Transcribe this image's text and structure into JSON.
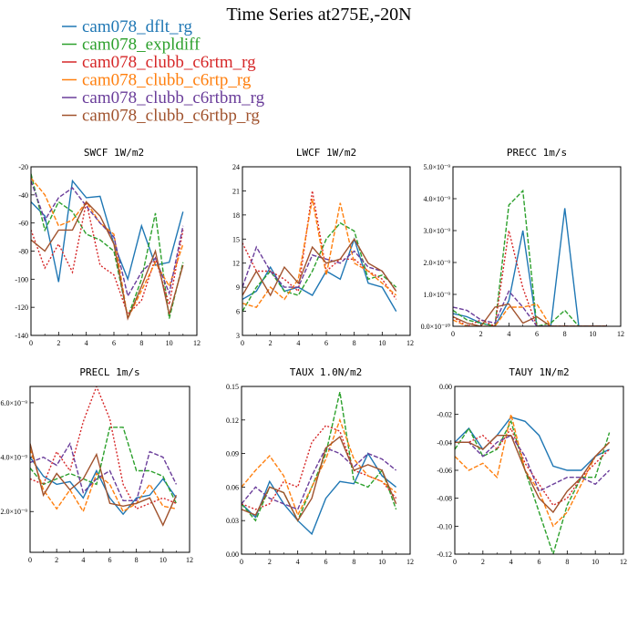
{
  "figure": {
    "title": "Time Series at275E,-20N"
  },
  "legend": [
    {
      "name": "cam078_dflt_rg",
      "color": "#1f77b4",
      "dash": "solid"
    },
    {
      "name": "cam078_expldiff",
      "color": "#2ca02c",
      "dash": "dashed"
    },
    {
      "name": "cam078_clubb_c6rtm_rg",
      "color": "#d62728",
      "dash": "dotted"
    },
    {
      "name": "cam078_clubb_c6rtp_rg",
      "color": "#ff7f0e",
      "dash": "dashed"
    },
    {
      "name": "cam078_clubb_c6rtbm_rg",
      "color": "#6a3d9a",
      "dash": "dashed"
    },
    {
      "name": "cam078_clubb_c6rtbp_rg",
      "color": "#a0522d",
      "dash": "solid"
    }
  ],
  "chart_data": [
    {
      "type": "line",
      "title": "SWCF   1W/m2",
      "x": [
        0,
        1,
        2,
        3,
        4,
        5,
        6,
        7,
        8,
        9,
        10,
        11
      ],
      "xlim": [
        0,
        12
      ],
      "xticks": [
        "0",
        "2",
        "4",
        "6",
        "8",
        "10",
        "12"
      ],
      "ylim": [
        -140,
        -20
      ],
      "yticks": [
        "-140",
        "-120",
        "-100",
        "-80",
        "-60",
        "-40",
        "-20"
      ],
      "series": [
        {
          "name": "cam078_dflt_rg",
          "values": [
            -45,
            -55,
            -102,
            -30,
            -42,
            -41,
            -75,
            -100,
            -62,
            -90,
            -88,
            -52
          ]
        },
        {
          "name": "cam078_expldiff",
          "values": [
            -25,
            -65,
            -45,
            -52,
            -68,
            -72,
            -80,
            -127,
            -100,
            -53,
            -128,
            -88
          ]
        },
        {
          "name": "cam078_clubb_c6rtm_rg",
          "values": [
            -65,
            -92,
            -75,
            -95,
            -45,
            -90,
            -97,
            -125,
            -115,
            -85,
            -118,
            -65
          ]
        },
        {
          "name": "cam078_clubb_c6rtp_rg",
          "values": [
            -28,
            -40,
            -62,
            -58,
            -45,
            -60,
            -68,
            -128,
            -108,
            -88,
            -105,
            -75
          ]
        },
        {
          "name": "cam078_clubb_c6rtbm_rg",
          "values": [
            -30,
            -58,
            -42,
            -35,
            -48,
            -60,
            -70,
            -112,
            -95,
            -85,
            -110,
            -62
          ]
        },
        {
          "name": "cam078_clubb_c6rtbp_rg",
          "values": [
            -72,
            -80,
            -65,
            -65,
            -45,
            -55,
            -75,
            -128,
            -105,
            -80,
            -125,
            -90
          ]
        }
      ]
    },
    {
      "type": "line",
      "title": "LWCF   1W/m2",
      "x": [
        0,
        1,
        2,
        3,
        4,
        5,
        6,
        7,
        8,
        9,
        10,
        11
      ],
      "xlim": [
        0,
        12
      ],
      "xticks": [
        "0",
        "2",
        "4",
        "6",
        "8",
        "10",
        "12"
      ],
      "ylim": [
        3,
        24
      ],
      "yticks": [
        "3",
        "6",
        "9",
        "12",
        "15",
        "18",
        "21",
        "24"
      ],
      "series": [
        {
          "name": "cam078_dflt_rg",
          "values": [
            7.5,
            8.5,
            11.5,
            8.5,
            9,
            8,
            11,
            10,
            15,
            9.5,
            9,
            6
          ]
        },
        {
          "name": "cam078_expldiff",
          "values": [
            6,
            9,
            11,
            8.5,
            8,
            11,
            15,
            17,
            16,
            10,
            10.5,
            9
          ]
        },
        {
          "name": "cam078_clubb_c6rtm_rg",
          "values": [
            14.5,
            11,
            11,
            10,
            8.5,
            21,
            11,
            12.5,
            12.5,
            11,
            10,
            7.5
          ]
        },
        {
          "name": "cam078_clubb_c6rtp_rg",
          "values": [
            7,
            6.5,
            9,
            7.5,
            10,
            20,
            10.5,
            19.5,
            12,
            11,
            9.5,
            8
          ]
        },
        {
          "name": "cam078_clubb_c6rtbm_rg",
          "values": [
            9,
            14,
            11,
            9,
            9,
            13,
            12.5,
            12,
            13.5,
            11.5,
            11,
            8.5
          ]
        },
        {
          "name": "cam078_clubb_c6rtbp_rg",
          "values": [
            8,
            11,
            8,
            11.5,
            9.5,
            14,
            12,
            12.5,
            15,
            12,
            11,
            8.5
          ]
        }
      ]
    },
    {
      "type": "line",
      "title": "PRECC   1m/s",
      "x": [
        0,
        1,
        2,
        3,
        4,
        5,
        6,
        7,
        8,
        9,
        10,
        11
      ],
      "xlim": [
        0,
        12
      ],
      "xticks": [
        "0",
        "2",
        "4",
        "6",
        "8",
        "10",
        "12"
      ],
      "ylim": [
        0,
        5e-09
      ],
      "yticks": [
        "0.0×10⁻¹⁰",
        "1.0×10⁻⁹",
        "2.0×10⁻⁹",
        "3.0×10⁻⁹",
        "4.0×10⁻⁹",
        "5.0×10⁻⁹"
      ],
      "series": [
        {
          "name": "cam078_dflt_rg",
          "values": [
            4e-10,
            3e-10,
            1e-10,
            0,
            8e-10,
            3e-09,
            0,
            0,
            3.7e-09,
            0,
            0,
            0
          ]
        },
        {
          "name": "cam078_expldiff",
          "values": [
            5e-10,
            2e-10,
            1e-10,
            0,
            3.8e-09,
            4.25e-09,
            0,
            1e-10,
            5e-10,
            0,
            0,
            0
          ]
        },
        {
          "name": "cam078_clubb_c6rtm_rg",
          "values": [
            3e-10,
            0,
            2e-10,
            0,
            3e-09,
            1.2e-09,
            0,
            0,
            0,
            0,
            0,
            0
          ]
        },
        {
          "name": "cam078_clubb_c6rtp_rg",
          "values": [
            2e-10,
            0,
            0,
            0,
            6e-10,
            6e-10,
            7e-10,
            0,
            0,
            0,
            0,
            0
          ]
        },
        {
          "name": "cam078_clubb_c6rtbm_rg",
          "values": [
            6e-10,
            5e-10,
            2e-10,
            1e-10,
            1.1e-09,
            6e-10,
            0,
            0,
            0,
            0,
            0,
            0
          ]
        },
        {
          "name": "cam078_clubb_c6rtbp_rg",
          "values": [
            3e-10,
            1e-10,
            0,
            6e-10,
            7e-10,
            1e-10,
            3e-10,
            0,
            0,
            0,
            0,
            0
          ]
        }
      ]
    },
    {
      "type": "line",
      "title": "PRECL   1m/s",
      "x": [
        0,
        1,
        2,
        3,
        4,
        5,
        6,
        7,
        8,
        9,
        10,
        11
      ],
      "xlim": [
        0,
        12
      ],
      "xticks": [
        "0",
        "2",
        "4",
        "6",
        "8",
        "10",
        "12"
      ],
      "ylim": [
        5e-10,
        6.6e-09
      ],
      "yticks": [
        "2.0×10⁻⁹",
        "4.0×10⁻⁹",
        "6.0×10⁻⁹"
      ],
      "series": [
        {
          "name": "cam078_dflt_rg",
          "values": [
            4e-09,
            3.3e-09,
            3e-09,
            3.1e-09,
            2.5e-09,
            3.5e-09,
            2.5e-09,
            1.9e-09,
            2.5e-09,
            2.6e-09,
            3.2e-09,
            2.5e-09
          ]
        },
        {
          "name": "cam078_expldiff",
          "values": [
            3.6e-09,
            3e-09,
            3.2e-09,
            3.4e-09,
            3.2e-09,
            3e-09,
            5.1e-09,
            5.1e-09,
            3.5e-09,
            3.5e-09,
            3.3e-09,
            2.3e-09
          ]
        },
        {
          "name": "cam078_clubb_c6rtm_rg",
          "values": [
            3.2e-09,
            3e-09,
            4.2e-09,
            3.5e-09,
            5.3e-09,
            6.6e-09,
            5.4e-09,
            3e-09,
            2.1e-09,
            2.3e-09,
            2.5e-09,
            2.3e-09
          ]
        },
        {
          "name": "cam078_clubb_c6rtp_rg",
          "values": [
            4.3e-09,
            2.8e-09,
            2.1e-09,
            2.8e-09,
            2e-09,
            3.4e-09,
            3e-09,
            2e-09,
            2.3e-09,
            3e-09,
            2.2e-09,
            2.1e-09
          ]
        },
        {
          "name": "cam078_clubb_c6rtbm_rg",
          "values": [
            3.8e-09,
            4e-09,
            3.7e-09,
            4.5e-09,
            2.7e-09,
            3.2e-09,
            3.5e-09,
            2.4e-09,
            2.4e-09,
            4.2e-09,
            4e-09,
            3e-09
          ]
        },
        {
          "name": "cam078_clubb_c6rtbp_rg",
          "values": [
            4.5e-09,
            2.6e-09,
            3.4e-09,
            2.8e-09,
            3.2e-09,
            4.1e-09,
            2.3e-09,
            2.2e-09,
            2.3e-09,
            2.5e-09,
            1.5e-09,
            2.6e-09
          ]
        }
      ]
    },
    {
      "type": "line",
      "title": "TAUX   1.0N/m2",
      "x": [
        0,
        1,
        2,
        3,
        4,
        5,
        6,
        7,
        8,
        9,
        10,
        11
      ],
      "xlim": [
        0,
        12
      ],
      "xticks": [
        "0",
        "2",
        "4",
        "6",
        "8",
        "10",
        "12"
      ],
      "ylim": [
        0.0,
        0.15
      ],
      "yticks": [
        "0.00",
        "0.03",
        "0.06",
        "0.09",
        "0.12",
        "0.15"
      ],
      "series": [
        {
          "name": "cam078_dflt_rg",
          "values": [
            0.045,
            0.033,
            0.065,
            0.045,
            0.03,
            0.018,
            0.05,
            0.065,
            0.063,
            0.09,
            0.07,
            0.06
          ]
        },
        {
          "name": "cam078_expldiff",
          "values": [
            0.045,
            0.03,
            0.06,
            0.055,
            0.03,
            0.06,
            0.09,
            0.145,
            0.065,
            0.06,
            0.075,
            0.04
          ]
        },
        {
          "name": "cam078_clubb_c6rtm_rg",
          "values": [
            0.045,
            0.04,
            0.045,
            0.065,
            0.06,
            0.1,
            0.115,
            0.11,
            0.075,
            0.07,
            0.065,
            0.05
          ]
        },
        {
          "name": "cam078_clubb_c6rtp_rg",
          "values": [
            0.06,
            0.075,
            0.088,
            0.07,
            0.035,
            0.06,
            0.085,
            0.12,
            0.085,
            0.07,
            0.065,
            0.055
          ]
        },
        {
          "name": "cam078_clubb_c6rtbm_rg",
          "values": [
            0.045,
            0.06,
            0.05,
            0.045,
            0.04,
            0.07,
            0.095,
            0.09,
            0.078,
            0.09,
            0.085,
            0.075
          ]
        },
        {
          "name": "cam078_clubb_c6rtbp_rg",
          "values": [
            0.04,
            0.035,
            0.06,
            0.055,
            0.03,
            0.05,
            0.095,
            0.105,
            0.075,
            0.08,
            0.075,
            0.045
          ]
        }
      ]
    },
    {
      "type": "line",
      "title": "TAUY   1N/m2",
      "x": [
        0,
        1,
        2,
        3,
        4,
        5,
        6,
        7,
        8,
        9,
        10,
        11
      ],
      "xlim": [
        0,
        12
      ],
      "xticks": [
        "0",
        "2",
        "4",
        "6",
        "8",
        "10",
        "12"
      ],
      "ylim": [
        -0.12,
        0.0
      ],
      "yticks": [
        "-0.12",
        "-0.10",
        "-0.08",
        "-0.06",
        "-0.04",
        "-0.02",
        "0.00"
      ],
      "series": [
        {
          "name": "cam078_dflt_rg",
          "values": [
            -0.04,
            -0.03,
            -0.045,
            -0.035,
            -0.022,
            -0.025,
            -0.035,
            -0.057,
            -0.06,
            -0.06,
            -0.05,
            -0.045
          ]
        },
        {
          "name": "cam078_expldiff",
          "values": [
            -0.045,
            -0.03,
            -0.05,
            -0.045,
            -0.025,
            -0.06,
            -0.09,
            -0.12,
            -0.085,
            -0.065,
            -0.065,
            -0.033
          ]
        },
        {
          "name": "cam078_clubb_c6rtm_rg",
          "values": [
            -0.04,
            -0.04,
            -0.035,
            -0.045,
            -0.03,
            -0.055,
            -0.07,
            -0.085,
            -0.08,
            -0.065,
            -0.055,
            -0.045
          ]
        },
        {
          "name": "cam078_clubb_c6rtp_rg",
          "values": [
            -0.05,
            -0.06,
            -0.055,
            -0.065,
            -0.02,
            -0.06,
            -0.075,
            -0.1,
            -0.09,
            -0.07,
            -0.05,
            -0.04
          ]
        },
        {
          "name": "cam078_clubb_c6rtbm_rg",
          "values": [
            -0.04,
            -0.04,
            -0.05,
            -0.04,
            -0.035,
            -0.05,
            -0.075,
            -0.07,
            -0.065,
            -0.065,
            -0.07,
            -0.06
          ]
        },
        {
          "name": "cam078_clubb_c6rtbp_rg",
          "values": [
            -0.04,
            -0.04,
            -0.045,
            -0.035,
            -0.035,
            -0.06,
            -0.08,
            -0.09,
            -0.075,
            -0.065,
            -0.05,
            -0.04
          ]
        }
      ]
    }
  ]
}
